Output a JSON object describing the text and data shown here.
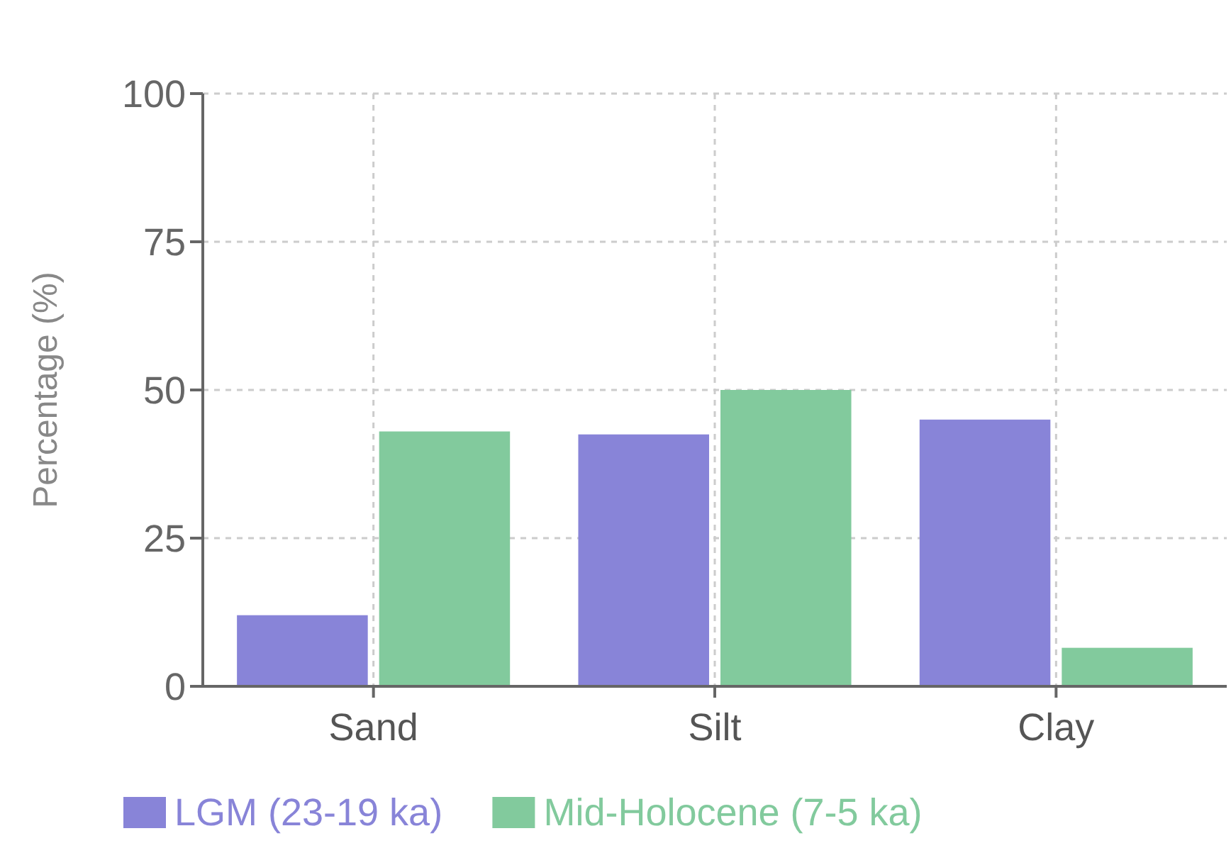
{
  "chart_data": {
    "type": "bar",
    "ylabel": "Percentage (%)",
    "categories": [
      "Sand",
      "Silt",
      "Clay"
    ],
    "series": [
      {
        "name": "LGM (23-19 ka)",
        "color": "#8884d8",
        "values": [
          12,
          42.5,
          45
        ]
      },
      {
        "name": "Mid-Holocene (7-5 ka)",
        "color": "#82ca9d",
        "values": [
          43,
          50,
          6.5
        ]
      }
    ],
    "ylim": [
      0,
      100
    ],
    "yticks": [
      0,
      25,
      50,
      75,
      100
    ],
    "grid": true,
    "legend": "bottom"
  }
}
